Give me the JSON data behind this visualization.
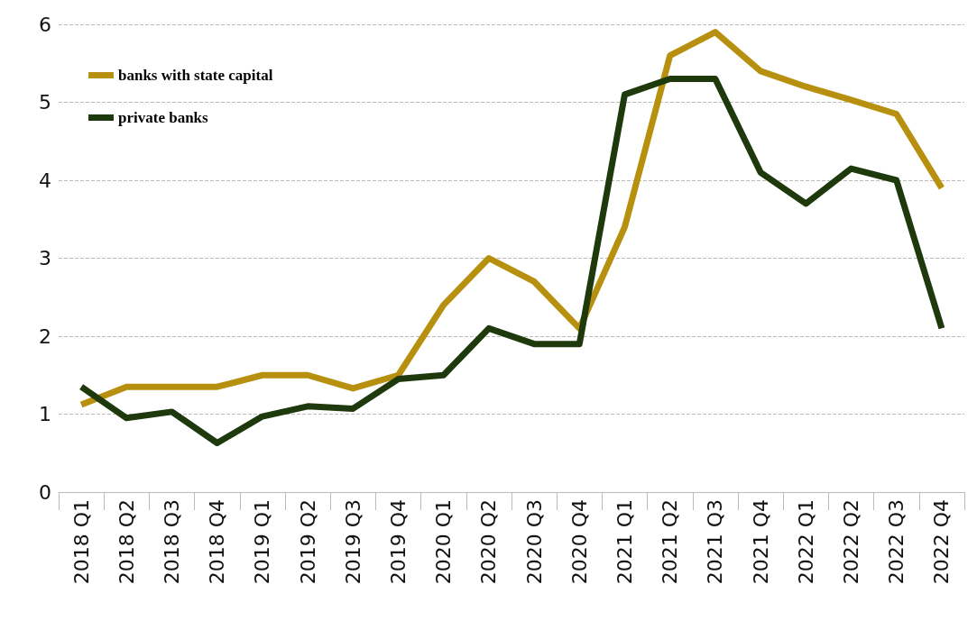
{
  "chart_data": {
    "type": "line",
    "categories": [
      "2018 Q1",
      "2018 Q2",
      "2018 Q3",
      "2018 Q4",
      "2019 Q1",
      "2019 Q2",
      "2019 Q3",
      "2019 Q4",
      "2020 Q1",
      "2020 Q2",
      "2020 Q3",
      "2020 Q4",
      "2021 Q1",
      "2021 Q2",
      "2021 Q3",
      "2021 Q4",
      "2022 Q1",
      "2022 Q2",
      "2022 Q3",
      "2022 Q4"
    ],
    "series": [
      {
        "name": "banks with state capital",
        "color": "#b8900f",
        "values": [
          1.12,
          1.35,
          1.35,
          1.35,
          1.5,
          1.5,
          1.33,
          1.5,
          2.4,
          3.0,
          2.7,
          2.1,
          3.4,
          5.6,
          5.9,
          5.4,
          5.2,
          5.03,
          4.85,
          3.9
        ]
      },
      {
        "name": "private banks",
        "color": "#1e3a0c",
        "values": [
          1.35,
          0.95,
          1.03,
          0.63,
          0.97,
          1.1,
          1.07,
          1.45,
          1.5,
          2.1,
          1.9,
          1.9,
          5.1,
          5.3,
          5.3,
          4.1,
          3.7,
          4.15,
          4.0,
          2.1
        ]
      }
    ],
    "ylim": [
      0,
      6
    ],
    "yticks": [
      0,
      1,
      2,
      3,
      4,
      5,
      6
    ],
    "grid": "y",
    "legend": "top left",
    "marker": "none",
    "line_style": "solid"
  }
}
